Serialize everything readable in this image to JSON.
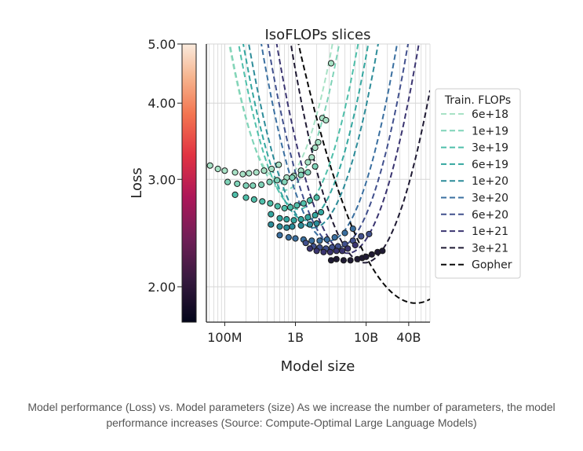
{
  "caption": "Model performance (Loss) vs. Model parameters (size) As we increase the number of parameters, the model performance increases (Source: Compute-Optimal Large Language Models)",
  "chart_data": {
    "type": "scatter",
    "title": "IsoFLOPs slices",
    "xlabel": "Model size",
    "ylabel": "Loss",
    "x_scale": "log",
    "y_scale": "log",
    "xlim": [
      55000000,
      80000000000
    ],
    "ylim": [
      1.75,
      5.0
    ],
    "x_ticks": [
      {
        "value": 100000000,
        "label": "100M"
      },
      {
        "value": 1000000000,
        "label": "1B"
      },
      {
        "value": 10000000000,
        "label": "10B"
      },
      {
        "value": 40000000000,
        "label": "40B"
      }
    ],
    "y_ticks": [
      {
        "value": 2.0,
        "label": "2.00"
      },
      {
        "value": 3.0,
        "label": "3.00"
      },
      {
        "value": 4.0,
        "label": "4.00"
      },
      {
        "value": 5.0,
        "label": "5.00"
      }
    ],
    "grid": true,
    "colorbar": true,
    "legend_title": "Train. FLOPs",
    "legend_position": "right",
    "series": [
      {
        "name": "6e+18",
        "color": "#a8e2c6",
        "opt_x": 620000000,
        "opt_loss": 2.98,
        "curv": 0.42,
        "pts": [
          [
            62000000.0,
            3.16
          ],
          [
            80000000.0,
            3.12
          ],
          [
            100000000.0,
            3.1
          ],
          [
            140000000.0,
            3.08
          ],
          [
            180000000.0,
            3.06
          ],
          [
            220000000.0,
            3.07
          ],
          [
            280000000.0,
            3.08
          ],
          [
            360000000.0,
            3.1
          ],
          [
            460000000.0,
            3.12
          ],
          [
            580000000.0,
            3.17
          ],
          [
            750000000.0,
            3.02
          ],
          [
            950000000.0,
            3.04
          ],
          [
            1200000000.0,
            3.1
          ],
          [
            1500000000.0,
            3.2
          ],
          [
            1700000000.0,
            3.26
          ],
          [
            1900000000.0,
            3.38
          ],
          [
            2100000000.0,
            3.45
          ],
          [
            2400000000.0,
            3.78
          ],
          [
            2700000000.0,
            3.75
          ],
          [
            3200000000.0,
            4.65
          ]
        ]
      },
      {
        "name": "1e+19",
        "color": "#7fd3b8",
        "opt_x": 700000000,
        "opt_loss": 2.88,
        "curv": 0.4,
        "pts": [
          [
            110000000.0,
            2.97
          ],
          [
            150000000.0,
            2.95
          ],
          [
            200000000.0,
            2.93
          ],
          [
            250000000.0,
            2.93
          ],
          [
            330000000.0,
            2.94
          ],
          [
            430000000.0,
            2.97
          ],
          [
            550000000.0,
            2.99
          ],
          [
            700000000.0,
            2.97
          ],
          [
            900000000.0,
            3.02
          ],
          [
            1200000000.0,
            3.05
          ],
          [
            1500000000.0,
            3.08
          ],
          [
            1900000000.0,
            3.15
          ]
        ]
      },
      {
        "name": "3e+19",
        "color": "#4fbfaa",
        "opt_x": 1100000000,
        "opt_loss": 2.68,
        "curv": 0.38,
        "pts": [
          [
            140000000.0,
            2.83
          ],
          [
            200000000.0,
            2.8
          ],
          [
            260000000.0,
            2.78
          ],
          [
            340000000.0,
            2.76
          ],
          [
            440000000.0,
            2.74
          ],
          [
            560000000.0,
            2.71
          ],
          [
            700000000.0,
            2.69
          ],
          [
            850000000.0,
            2.7
          ],
          [
            1050000000.0,
            2.72
          ],
          [
            1300000000.0,
            2.74
          ],
          [
            1600000000.0,
            2.77
          ],
          [
            2000000000.0,
            2.8
          ]
        ]
      },
      {
        "name": "6e+19",
        "color": "#33a69f",
        "opt_x": 1400000000,
        "opt_loss": 2.57,
        "curv": 0.37,
        "pts": [
          [
            450000000.0,
            2.63
          ],
          [
            600000000.0,
            2.59
          ],
          [
            750000000.0,
            2.58
          ],
          [
            950000000.0,
            2.57
          ],
          [
            1200000000.0,
            2.58
          ],
          [
            1500000000.0,
            2.6
          ],
          [
            1900000000.0,
            2.62
          ],
          [
            2300000000.0,
            2.65
          ]
        ]
      },
      {
        "name": "1e+20",
        "color": "#2c8c99",
        "opt_x": 1800000000,
        "opt_loss": 2.5,
        "curv": 0.36,
        "pts": [
          [
            450000000.0,
            2.53
          ],
          [
            600000000.0,
            2.51
          ],
          [
            750000000.0,
            2.5
          ],
          [
            900000000.0,
            2.51
          ],
          [
            1200000000.0,
            2.52
          ],
          [
            1600000000.0,
            2.53
          ],
          [
            2000000000.0,
            2.54
          ]
        ]
      },
      {
        "name": "3e+20",
        "color": "#3a6fa0",
        "opt_x": 3000000000,
        "opt_loss": 2.38,
        "curv": 0.35,
        "pts": [
          [
            600000000.0,
            2.43
          ],
          [
            800000000.0,
            2.41
          ],
          [
            1000000000.0,
            2.4
          ],
          [
            1300000000.0,
            2.39
          ],
          [
            1700000000.0,
            2.38
          ],
          [
            2200000000.0,
            2.38
          ],
          [
            2800000000.0,
            2.39
          ],
          [
            3600000000.0,
            2.41
          ],
          [
            5000000000.0,
            2.45
          ],
          [
            6500000000.0,
            2.49
          ]
        ]
      },
      {
        "name": "6e+20",
        "color": "#41508d",
        "opt_x": 4000000000,
        "opt_loss": 2.32,
        "curv": 0.34,
        "pts": [
          [
            1400000000.0,
            2.36
          ],
          [
            1800000000.0,
            2.33
          ],
          [
            2200000000.0,
            2.32
          ],
          [
            2700000000.0,
            2.31
          ],
          [
            3300000000.0,
            2.32
          ],
          [
            4000000000.0,
            2.33
          ],
          [
            5000000000.0,
            2.35
          ],
          [
            6500000000.0,
            2.38
          ],
          [
            8500000000.0,
            2.42
          ],
          [
            11000000000.0,
            2.44
          ]
        ]
      },
      {
        "name": "1e+21",
        "color": "#3a3470",
        "opt_x": 5500000000,
        "opt_loss": 2.27,
        "curv": 0.34,
        "pts": [
          [
            1600000000.0,
            2.31
          ],
          [
            2000000000.0,
            2.29
          ],
          [
            2500000000.0,
            2.28
          ],
          [
            3100000000.0,
            2.28
          ],
          [
            3800000000.0,
            2.29
          ],
          [
            4600000000.0,
            2.29
          ],
          [
            5500000000.0,
            2.31
          ],
          [
            7000000000.0,
            2.34
          ]
        ]
      },
      {
        "name": "3e+21",
        "color": "#1f1a33",
        "opt_x": 9500000000,
        "opt_loss": 2.19,
        "curv": 0.33,
        "pts": [
          [
            3200000000.0,
            2.21
          ],
          [
            3800000000.0,
            2.22
          ],
          [
            4800000000.0,
            2.21
          ],
          [
            6000000000.0,
            2.21
          ],
          [
            7500000000.0,
            2.22
          ],
          [
            8800000000.0,
            2.23
          ],
          [
            10000000000.0,
            2.24
          ],
          [
            12000000000.0,
            2.26
          ],
          [
            14500000000.0,
            2.28
          ],
          [
            17000000000.0,
            2.29
          ]
        ]
      },
      {
        "name": "Gopher",
        "color": "#0a0a0a",
        "opt_x": 50000000000,
        "opt_loss": 1.88,
        "curv": 0.155,
        "pts": []
      }
    ]
  }
}
